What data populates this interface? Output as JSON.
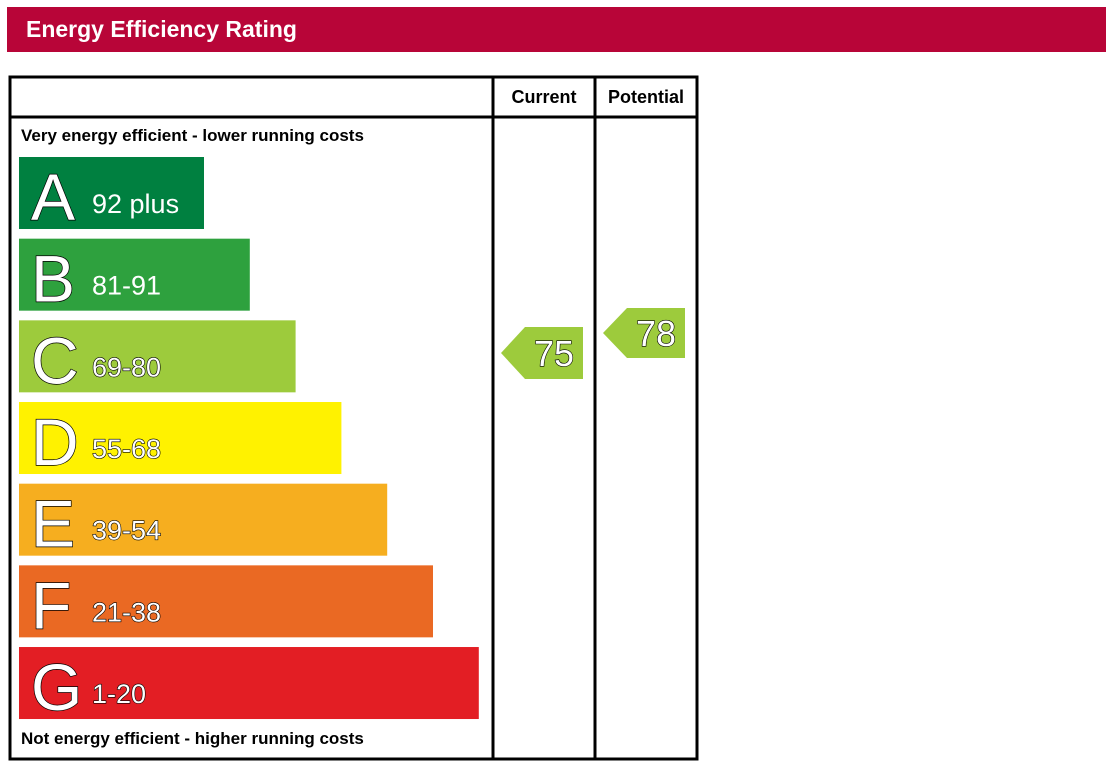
{
  "header": {
    "title": "Energy Efficiency Rating"
  },
  "chart_data": {
    "type": "table",
    "columns": [
      "Current",
      "Potential"
    ],
    "top_caption": "Very energy efficient - lower running costs",
    "bottom_caption": "Not energy efficient - higher running costs",
    "bands": [
      {
        "letter": "A",
        "range": "92 plus",
        "min": 92,
        "max": 100,
        "color": "#008040"
      },
      {
        "letter": "B",
        "range": "81-91",
        "min": 81,
        "max": 91,
        "color": "#2ea13e"
      },
      {
        "letter": "C",
        "range": "69-80",
        "min": 69,
        "max": 80,
        "color": "#9dcb3c"
      },
      {
        "letter": "D",
        "range": "55-68",
        "min": 55,
        "max": 68,
        "color": "#fff200"
      },
      {
        "letter": "E",
        "range": "39-54",
        "min": 39,
        "max": 54,
        "color": "#f6ae1f"
      },
      {
        "letter": "F",
        "range": "21-38",
        "min": 21,
        "max": 38,
        "color": "#ea6923"
      },
      {
        "letter": "G",
        "range": "1-20",
        "min": 1,
        "max": 20,
        "color": "#e31e24"
      }
    ],
    "current": {
      "value": 75,
      "band": "C",
      "color": "#9dcb3c"
    },
    "potential": {
      "value": 78,
      "band": "C",
      "color": "#9dcb3c"
    }
  }
}
